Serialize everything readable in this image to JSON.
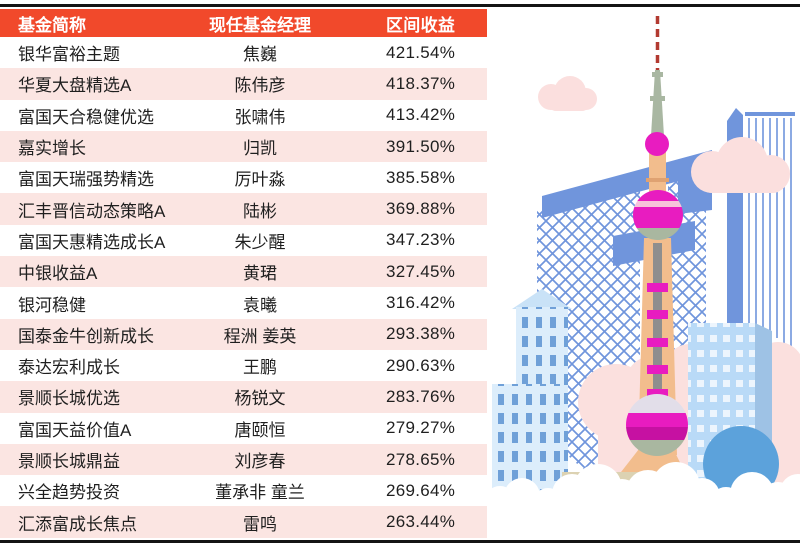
{
  "chart_data": {
    "type": "table",
    "title": "",
    "columns": [
      "基金简称",
      "现任基金经理",
      "区间收益"
    ],
    "rows": [
      [
        "银华富裕主题",
        "焦巍",
        "421.54%"
      ],
      [
        "华夏大盘精选A",
        "陈伟彦",
        "418.37%"
      ],
      [
        "富国天合稳健优选",
        "张啸伟",
        "413.42%"
      ],
      [
        "嘉实增长",
        "归凯",
        "391.50%"
      ],
      [
        "富国天瑞强势精选",
        "厉叶淼",
        "385.58%"
      ],
      [
        "汇丰晋信动态策略A",
        "陆彬",
        "369.88%"
      ],
      [
        "富国天惠精选成长A",
        "朱少醒",
        "347.23%"
      ],
      [
        "中银收益A",
        "黄珺",
        "327.45%"
      ],
      [
        "银河稳健",
        "袁曦",
        "316.42%"
      ],
      [
        "国泰金牛创新成长",
        "程洲 姜英",
        "293.38%"
      ],
      [
        "泰达宏利成长",
        "王鹏",
        "290.63%"
      ],
      [
        "景顺长城优选",
        "杨锐文",
        "283.76%"
      ],
      [
        "富国天益价值A",
        "唐颐恒",
        "279.27%"
      ],
      [
        "景顺长城鼎益",
        "刘彦春",
        "278.65%"
      ],
      [
        "兴全趋势投资",
        "董承非 童兰",
        "269.64%"
      ],
      [
        "汇添富成长焦点",
        "雷鸣",
        "263.44%"
      ]
    ],
    "layout": {
      "striped_rows": true,
      "stripe_pattern": "even rows pink, odd rows white",
      "header_style": "white bold text on red bar"
    }
  },
  "colors": {
    "header_bg": "#F1492B",
    "header_text": "#FFFFFF",
    "row_bg": "#FFFFFF",
    "row_alt_bg": "#FBE5E2",
    "row_text": "#1F1F1F",
    "border_line": "#141414"
  },
  "illustration": {
    "name": "shanghai-oriental-pearl-tower-skyline",
    "palette": {
      "structure_blue": "#7095DC",
      "building_light": "#DCEDFB",
      "building_sky": "#B9DAF7",
      "window_blue": "#6FA0D8",
      "circle_blue": "#5CA2DB",
      "cloud_pink": "#FBDFDE",
      "backdrop_pink": "#FBE0DE",
      "tower_magenta": "#E81CC0",
      "tower_orange": "#F2BD8D",
      "tower_sage": "#A9B7A0",
      "antenna_red": "#B23A31",
      "bridge_tan": "#DCD2B2"
    }
  }
}
